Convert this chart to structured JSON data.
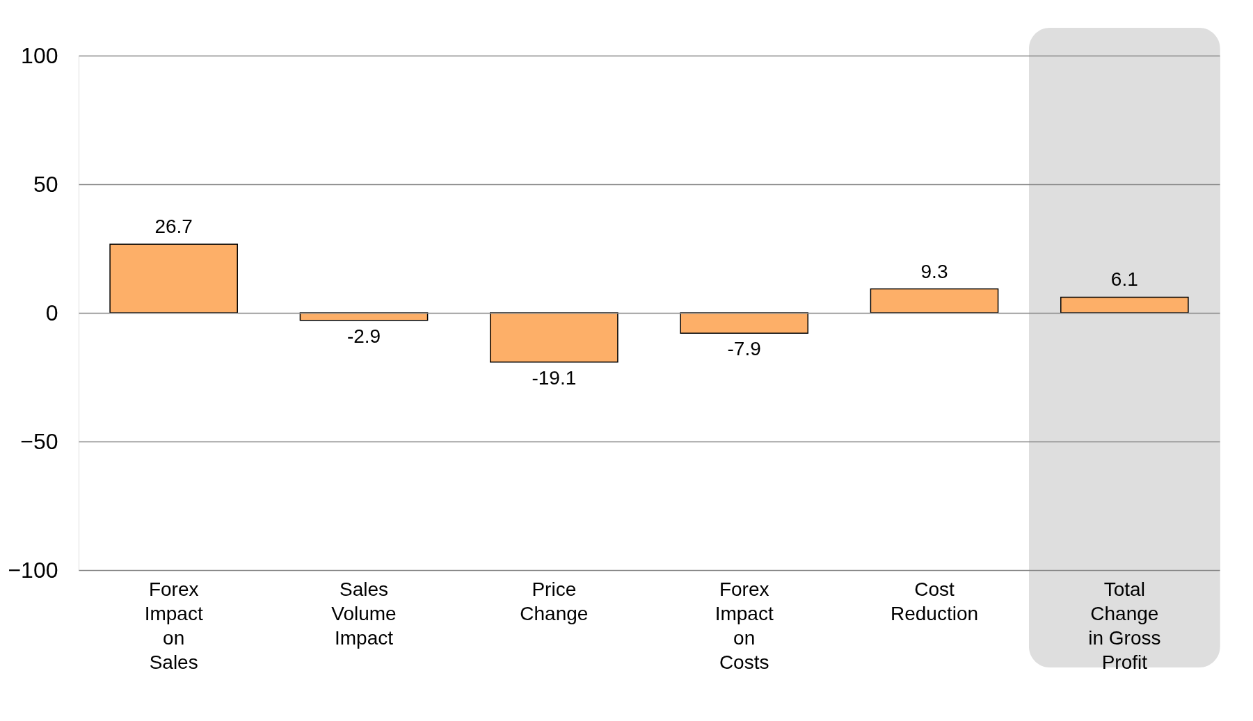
{
  "chart_data": {
    "type": "bar",
    "categories": [
      "Forex\nImpact\non\nSales",
      "Sales\nVolume\nImpact",
      "Price\nChange",
      "Forex\nImpact\non\nCosts",
      "Cost\nReduction",
      "Total\nChange\nin Gross\nProfit"
    ],
    "values": [
      26.7,
      -2.9,
      -19.1,
      -7.9,
      9.3,
      6.1
    ],
    "color": "#fdaf68",
    "ylim": [
      -100,
      100
    ],
    "yticks": [
      -100,
      -50,
      0,
      50,
      100
    ],
    "grid": "y",
    "data_labels": true,
    "bands": [
      {
        "axis": "x",
        "from": "Total\nChange\nin Gross\nProfit",
        "to": "Total\nChange\nin Gross\nProfit",
        "color": "#dedede"
      }
    ]
  }
}
